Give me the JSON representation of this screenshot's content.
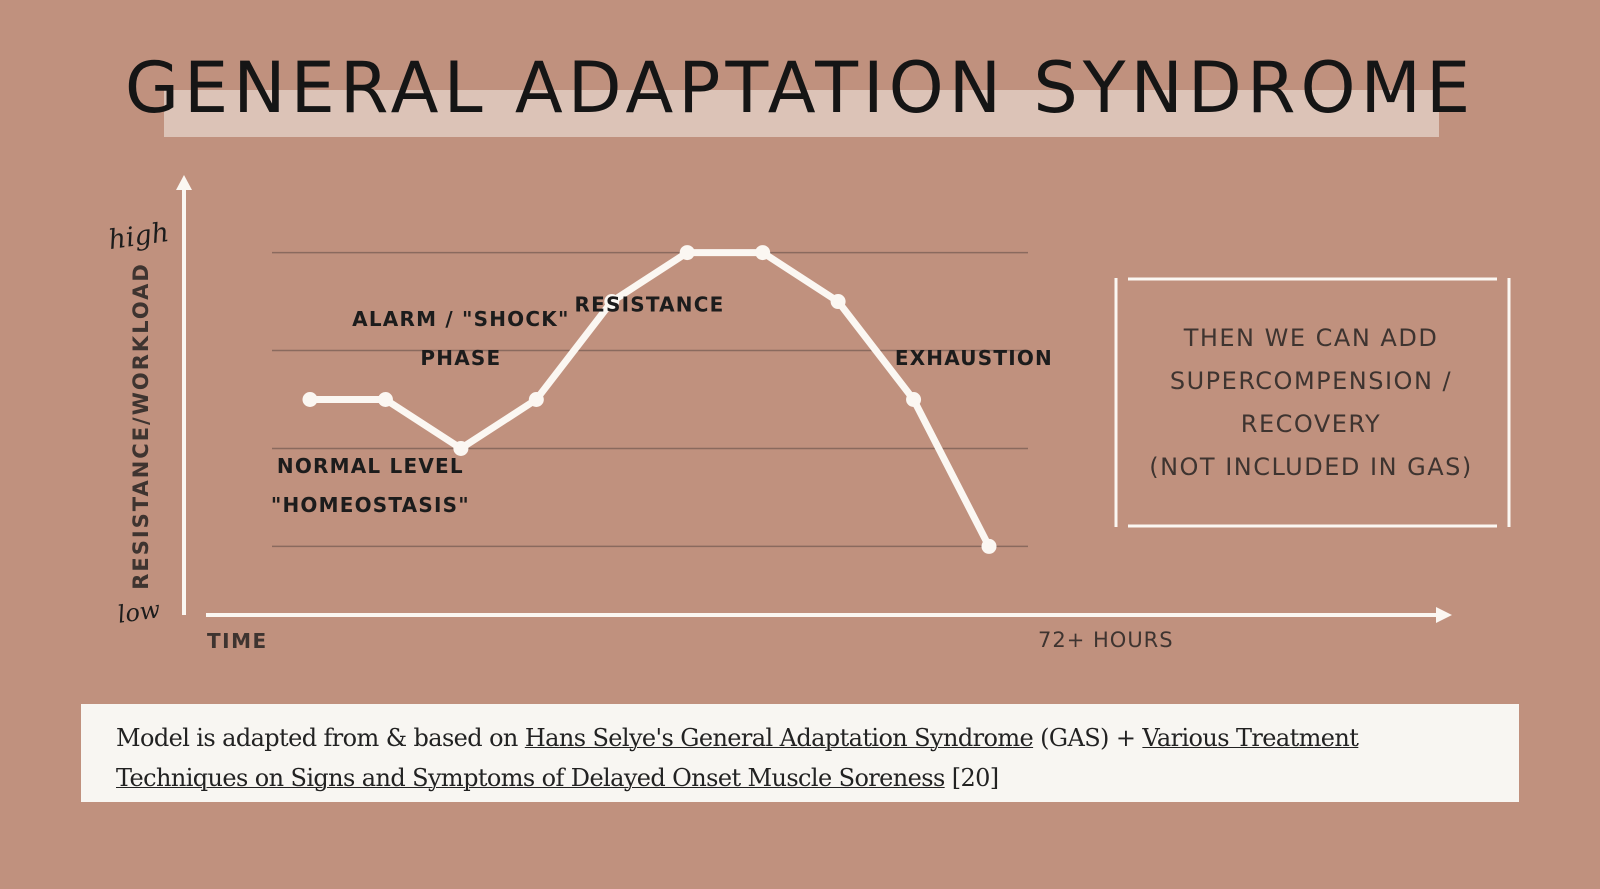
{
  "title": "GENERAL ADAPTATION SYNDROME",
  "chart_data": {
    "type": "line",
    "x": [
      1,
      2,
      3,
      4,
      5,
      6,
      7,
      8,
      9,
      10
    ],
    "y": [
      2.5,
      2.5,
      2.0,
      2.5,
      3.5,
      4.0,
      4.0,
      3.5,
      2.5,
      1.0
    ],
    "ylim": [
      0.3,
      4.7
    ],
    "grid_levels": [
      1,
      2,
      3,
      4
    ],
    "grid": true,
    "xlabel": "TIME",
    "x_end_label": "72+ HOURS",
    "ylabel": "RESISTANCE/WORKLOAD",
    "y_high_label": "high",
    "y_low_label": "low",
    "annotations": [
      {
        "text": "ALARM / \"SHOCK\"",
        "x": 3.0,
        "y": 3.25
      },
      {
        "text": "PHASE",
        "x": 3.0,
        "y": 2.85
      },
      {
        "text": "RESISTANCE",
        "x": 5.5,
        "y": 3.4
      },
      {
        "text": "EXHAUSTION",
        "x": 9.8,
        "y": 2.85
      },
      {
        "text": "NORMAL LEVEL",
        "x": 1.8,
        "y": 1.75
      },
      {
        "text": "\"HOMEOSTASIS\"",
        "x": 1.8,
        "y": 1.35
      }
    ]
  },
  "note": {
    "lines": [
      "THEN WE CAN ADD",
      "SUPERCOMPENSION /",
      "RECOVERY",
      "(NOT INCLUDED IN GAS)"
    ]
  },
  "caption": {
    "prefix": "Model is adapted from & based on ",
    "link1": "Hans Selye's General Adaptation Syndrome",
    "middle": " (GAS) + ",
    "link2": "Various Treatment Techniques on Signs and Symptoms of Delayed Onset Muscle Soreness",
    "suffix": " [20]"
  },
  "colors": {
    "background": "#c0917e",
    "title_band": "#dcc3b7",
    "line": "#fbf7f2",
    "grid": "#8a6a5e",
    "label_dark": "#1c1c1c",
    "axis_label": "#3e3430",
    "caption_bg": "#f8f6f2"
  }
}
